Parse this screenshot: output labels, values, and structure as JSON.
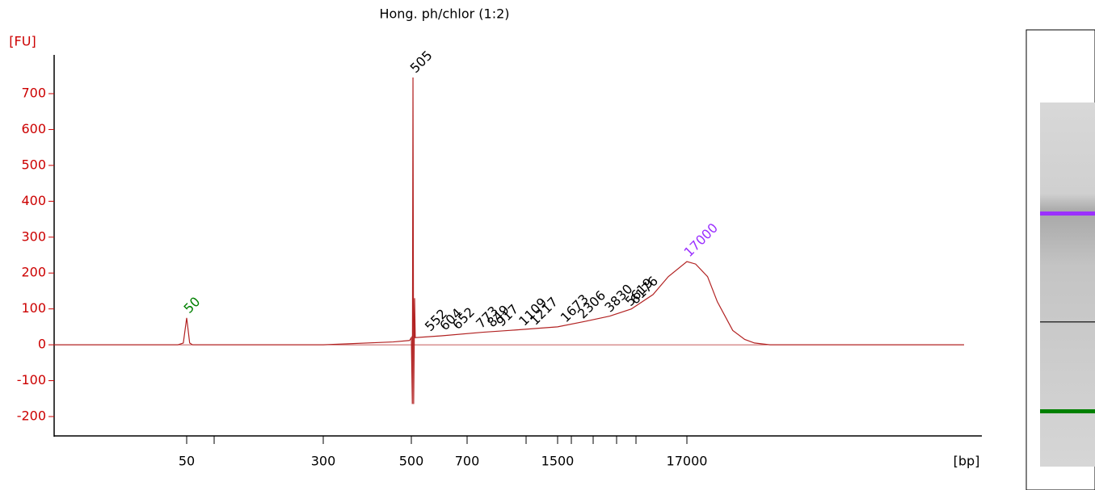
{
  "chart_data": {
    "type": "line",
    "title": "Hong. ph/chlor (1:2)",
    "y_label": "[FU]",
    "x_label": "[bp]",
    "color": "#b22222",
    "axis_color": "#cc0000",
    "xlim": [
      10,
      3000000
    ],
    "xticks": [
      50,
      300,
      500,
      700,
      1500,
      17000
    ],
    "ylim": [
      -254,
      808
    ],
    "yticks": [
      -200,
      -100,
      0,
      100,
      200,
      300,
      400,
      500,
      600,
      700
    ],
    "x": [
      10,
      45,
      48,
      49,
      50,
      51,
      52,
      54,
      300,
      450,
      495,
      500,
      503,
      505,
      507,
      509,
      510,
      512,
      600,
      800,
      1000,
      1500,
      2500,
      4000,
      6000,
      9000,
      12000,
      17000,
      20000,
      25000,
      30000,
      40000,
      50000,
      60000,
      80000,
      3000000
    ],
    "values": [
      0,
      0,
      5,
      40,
      75,
      40,
      5,
      0,
      0,
      8,
      12,
      20,
      -165,
      745,
      -165,
      20,
      130,
      20,
      25,
      35,
      40,
      50,
      65,
      80,
      100,
      140,
      190,
      232,
      225,
      190,
      120,
      40,
      15,
      5,
      0,
      0
    ],
    "peaks": [
      {
        "size": 50,
        "fu": 75,
        "color": "#008000"
      },
      {
        "size": 505,
        "fu": 745,
        "color": "#000000"
      },
      {
        "size": 552,
        "fu": 25,
        "color": "#000000"
      },
      {
        "size": 604,
        "fu": 27,
        "color": "#000000"
      },
      {
        "size": 652,
        "fu": 30,
        "color": "#000000"
      },
      {
        "size": 773,
        "fu": 33,
        "color": "#000000"
      },
      {
        "size": 849,
        "fu": 36,
        "color": "#000000"
      },
      {
        "size": 917,
        "fu": 38,
        "color": "#000000"
      },
      {
        "size": 1109,
        "fu": 40,
        "color": "#000000"
      },
      {
        "size": 1217,
        "fu": 42,
        "color": "#000000"
      },
      {
        "size": 1673,
        "fu": 50,
        "color": "#000000"
      },
      {
        "size": 2306,
        "fu": 60,
        "color": "#000000"
      },
      {
        "size": 3830,
        "fu": 78,
        "color": "#000000"
      },
      {
        "size": 5619,
        "fu": 95,
        "color": "#000000"
      },
      {
        "size": 6176,
        "fu": 100,
        "color": "#000000"
      },
      {
        "size": 17000,
        "fu": 232,
        "color": "#9b30ff"
      }
    ]
  }
}
